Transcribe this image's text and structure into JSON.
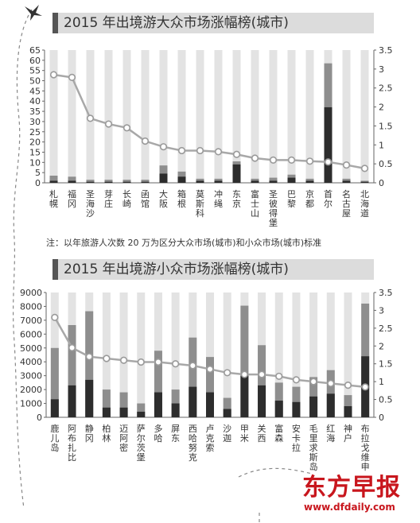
{
  "charts_meta": {
    "note": "注：以年旅游人次数 20 万为区分大众市场(城市)和小众市场(城市)标准",
    "watermark_cn": "东方早报",
    "watermark_url": "www.dfdaily.com",
    "colors": {
      "bg_bar": "#e3e3e3",
      "mid_bar": "#8e8e8e",
      "dark_bar": "#2d2d2d",
      "line": "#a8a8a8",
      "marker_edge": "#9a9a9a",
      "axis": "#666666"
    }
  },
  "chart_data": [
    {
      "type": "bar",
      "title": "2015 年出境游大众市场涨幅榜(城市)",
      "categories": [
        "札幌",
        "福冈",
        "圣海沙",
        "芽庄",
        "长崎",
        "函馆",
        "大阪",
        "箱根",
        "莫斯科",
        "冲绳",
        "东京",
        "富士山",
        "圣彼得堡",
        "巴黎",
        "京都",
        "首尔",
        "名古屋",
        "北海道"
      ],
      "ylim_left": [
        0,
        65
      ],
      "yticks_left": [
        0,
        5,
        10,
        15,
        20,
        25,
        30,
        35,
        40,
        45,
        50,
        55,
        60,
        65
      ],
      "ylim_right": [
        0,
        3.5
      ],
      "yticks_right": [
        0,
        0.5,
        1,
        1.5,
        2,
        2.5,
        3,
        3.5
      ],
      "series": [
        {
          "kind": "background",
          "values": [
            65,
            65,
            65,
            65,
            65,
            65,
            65,
            65,
            65,
            65,
            65,
            65,
            65,
            65,
            65,
            65,
            65,
            65
          ]
        },
        {
          "kind": "bar_2015",
          "values": [
            3.5,
            3,
            1.5,
            1.5,
            1.5,
            1.5,
            8.5,
            5.5,
            2,
            2,
            10.5,
            2,
            2.5,
            4,
            2,
            58.5,
            2,
            1
          ]
        },
        {
          "kind": "bar_2014",
          "values": [
            1,
            1,
            0.5,
            0.5,
            0.5,
            0.5,
            4.5,
            3,
            1,
            1,
            9,
            1,
            1,
            2.5,
            1,
            37,
            1,
            0.5
          ]
        },
        {
          "kind": "line_growth",
          "axis": "right",
          "values": [
            2.85,
            2.78,
            1.7,
            1.55,
            1.45,
            1.1,
            0.95,
            0.85,
            0.85,
            0.82,
            0.75,
            0.65,
            0.6,
            0.6,
            0.57,
            0.55,
            0.47,
            0.38
          ]
        }
      ]
    },
    {
      "type": "bar",
      "title": "2015 年出境游小众市场涨幅榜(城市)",
      "categories": [
        "鹿儿岛",
        "阿布扎比",
        "静冈",
        "柏林",
        "迈阿密",
        "萨尔茨堡",
        "多哈",
        "屏东",
        "西哈努克",
        "卢克索",
        "沙迦",
        "甲米",
        "关西",
        "富森",
        "安卡拉",
        "毛里求斯岛",
        "红海",
        "神户",
        "布拉戈维申"
      ],
      "ylim_left": [
        0,
        9000
      ],
      "yticks_left": [
        0,
        1000,
        2000,
        3000,
        4000,
        5000,
        6000,
        7000,
        8000,
        9000
      ],
      "ylim_right": [
        0,
        3.5
      ],
      "yticks_right": [
        0,
        0.5,
        1,
        1.5,
        2,
        2.5,
        3,
        3.5
      ],
      "series": [
        {
          "kind": "background",
          "values": [
            9000,
            9000,
            9000,
            9000,
            9000,
            9000,
            9000,
            9000,
            9000,
            9000,
            9000,
            9000,
            9000,
            9000,
            9000,
            9000,
            9000,
            9000,
            9000
          ]
        },
        {
          "kind": "bar_2015",
          "values": [
            5000,
            6650,
            7650,
            2000,
            1800,
            1000,
            4800,
            2000,
            5750,
            4350,
            1400,
            8050,
            5200,
            2500,
            2200,
            2900,
            3400,
            1600,
            8200
          ]
        },
        {
          "kind": "bar_2014",
          "values": [
            1300,
            2300,
            2700,
            700,
            700,
            400,
            1800,
            1000,
            2200,
            1800,
            600,
            3000,
            2300,
            1200,
            1100,
            1500,
            1700,
            800,
            4400
          ]
        },
        {
          "kind": "line_growth",
          "axis": "right",
          "values": [
            2.8,
            1.95,
            1.7,
            1.65,
            1.6,
            1.55,
            1.55,
            1.5,
            1.45,
            1.35,
            1.25,
            1.2,
            1.2,
            1.15,
            1.05,
            1.0,
            0.95,
            0.9,
            0.85
          ]
        }
      ]
    }
  ]
}
